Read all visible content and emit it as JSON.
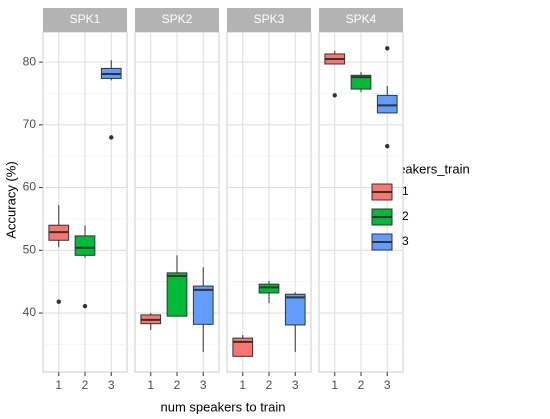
{
  "chart_data": {
    "type": "boxplot",
    "x_label": "num speakers to train",
    "y_label": "Accuracy (%)",
    "legend_title": "n_speakers_train",
    "facets": [
      "SPK1",
      "SPK2",
      "SPK3",
      "SPK4"
    ],
    "categories": [
      "1",
      "2",
      "3"
    ],
    "ylim": [
      30.6,
      84.8
    ],
    "yticks": [
      40,
      50,
      60,
      70,
      80
    ],
    "minor_yticks": [
      35,
      45,
      55,
      65,
      75
    ],
    "grid": true,
    "legend_position": "right",
    "series": [
      {
        "name": "1",
        "color": "#f8766d",
        "boxes": [
          {
            "whisker_low": 50.5,
            "q1": 51.6,
            "median": 52.9,
            "q3": 54.0,
            "whisker_high": 57.2,
            "outliers": [
              41.8
            ]
          },
          {
            "whisker_low": 37.3,
            "q1": 38.3,
            "median": 38.9,
            "q3": 39.7,
            "whisker_high": 40.0,
            "outliers": []
          },
          {
            "whisker_low": 33.1,
            "q1": 33.1,
            "median": 35.4,
            "q3": 36.0,
            "whisker_high": 36.5,
            "outliers": []
          },
          {
            "whisker_low": 79.7,
            "q1": 79.7,
            "median": 80.5,
            "q3": 81.3,
            "whisker_high": 81.8,
            "outliers": [
              74.7
            ]
          }
        ]
      },
      {
        "name": "2",
        "color": "#00ba38",
        "boxes": [
          {
            "whisker_low": 48.8,
            "q1": 49.2,
            "median": 50.4,
            "q3": 52.3,
            "whisker_high": 54.0,
            "outliers": [
              41.1
            ]
          },
          {
            "whisker_low": 39.5,
            "q1": 39.5,
            "median": 45.9,
            "q3": 46.4,
            "whisker_high": 49.2,
            "outliers": []
          },
          {
            "whisker_low": 41.6,
            "q1": 43.2,
            "median": 44.1,
            "q3": 44.6,
            "whisker_high": 45.1,
            "outliers": []
          },
          {
            "whisker_low": 75.2,
            "q1": 75.7,
            "median": 77.6,
            "q3": 77.9,
            "whisker_high": 78.4,
            "outliers": []
          }
        ]
      },
      {
        "name": "3",
        "color": "#619cff",
        "boxes": [
          {
            "whisker_low": 77.1,
            "q1": 77.4,
            "median": 78.1,
            "q3": 79.0,
            "whisker_high": 80.3,
            "outliers": [
              68.0
            ]
          },
          {
            "whisker_low": 33.8,
            "q1": 38.2,
            "median": 43.7,
            "q3": 44.3,
            "whisker_high": 47.3,
            "outliers": []
          },
          {
            "whisker_low": 33.8,
            "q1": 38.1,
            "median": 42.5,
            "q3": 43.0,
            "whisker_high": 43.3,
            "outliers": []
          },
          {
            "whisker_low": 71.9,
            "q1": 71.9,
            "median": 73.1,
            "q3": 74.7,
            "whisker_high": 76.2,
            "outliers": [
              82.2,
              66.6
            ]
          }
        ]
      }
    ]
  }
}
